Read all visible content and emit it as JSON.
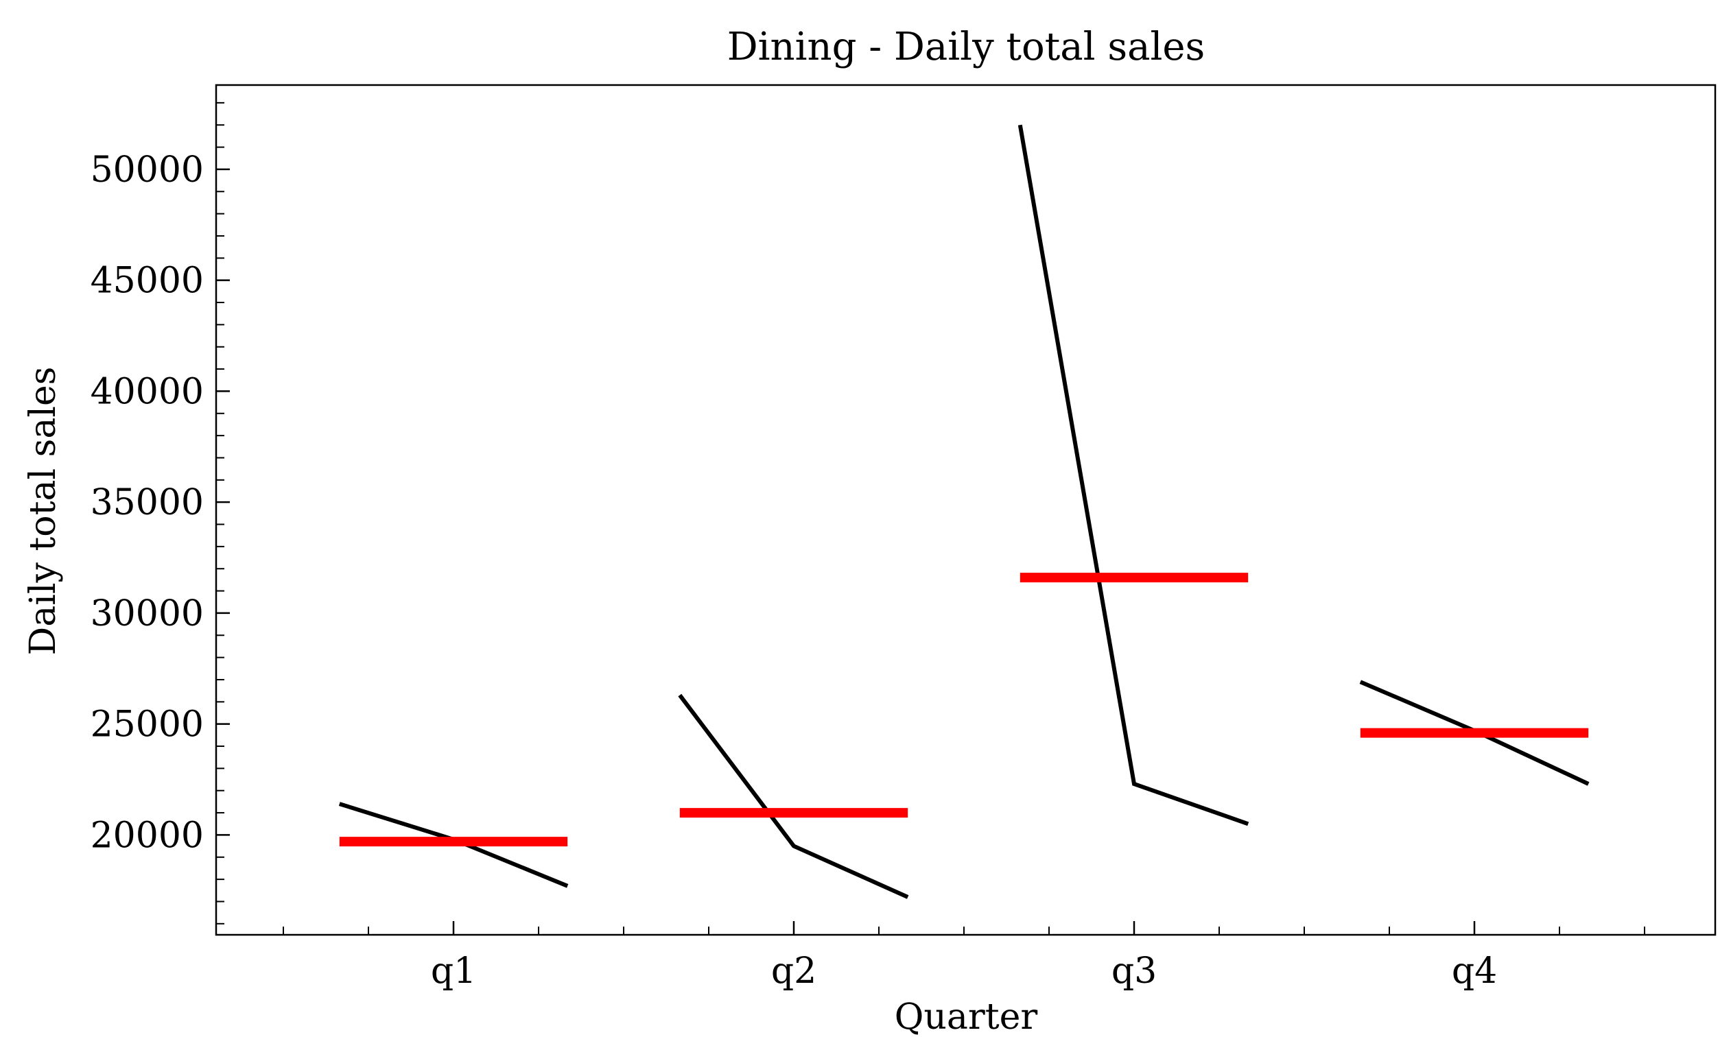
{
  "chart_data": {
    "type": "line",
    "title": "Dining - Daily total sales",
    "xlabel": "Quarter",
    "ylabel": "Daily total sales",
    "categories": [
      "q1",
      "q2",
      "q3",
      "q4"
    ],
    "ylim": [
      15500,
      53800
    ],
    "yticks": [
      20000,
      25000,
      30000,
      35000,
      40000,
      45000,
      50000
    ],
    "ytick_labels": [
      "20000",
      "25000",
      "30000",
      "35000",
      "40000",
      "45000",
      "50000"
    ],
    "minor_ytick_step": 1000,
    "grid": false,
    "legend": "none",
    "colors": {
      "series": "#000000",
      "mean": "#ff0000"
    },
    "series": [
      {
        "values": [
          [
            21400,
            19800,
            17700
          ],
          [
            26300,
            19500,
            17200
          ],
          [
            52000,
            22300,
            20500
          ],
          [
            26900,
            24700,
            22300
          ]
        ]
      }
    ],
    "means": [
      19700,
      21000,
      31600,
      24600
    ]
  }
}
